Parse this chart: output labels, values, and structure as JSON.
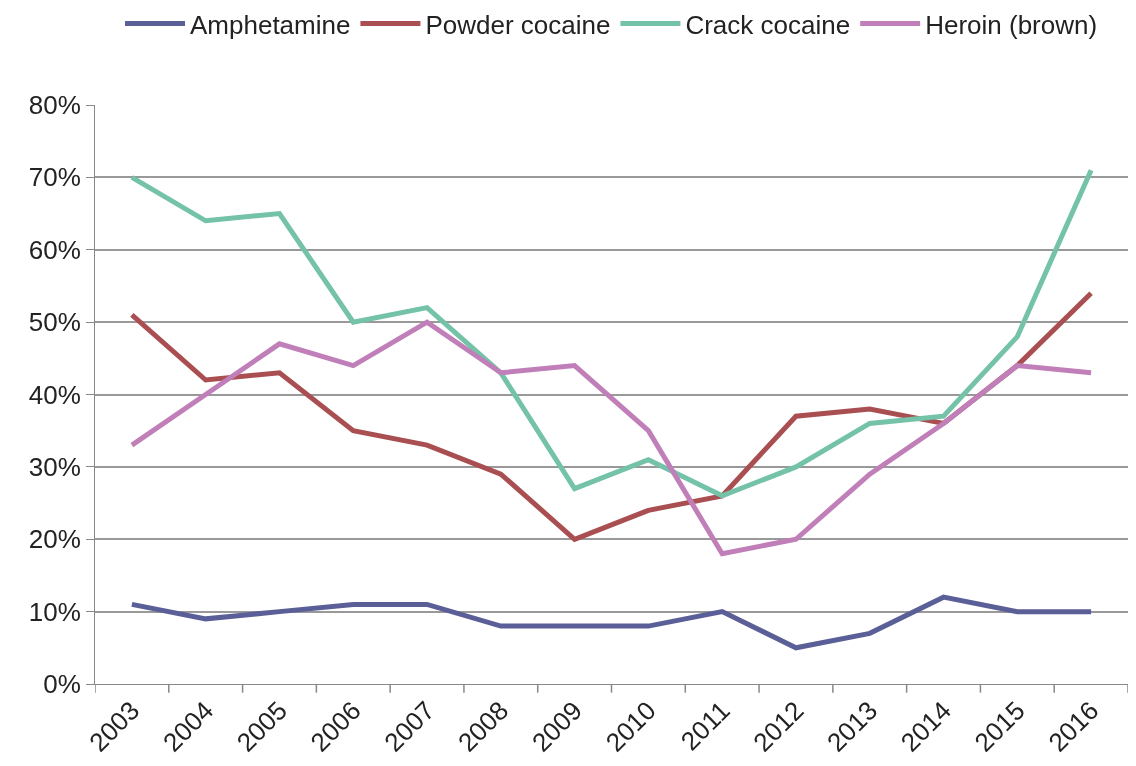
{
  "chart_data": {
    "type": "line",
    "categories": [
      "2003",
      "2004",
      "2005",
      "2006",
      "2007",
      "2008",
      "2009",
      "2010",
      "2011",
      "2012",
      "2013",
      "2014",
      "2015",
      "2016"
    ],
    "series": [
      {
        "name": "Amphetamine",
        "color": "#5b5f97",
        "values": [
          11,
          9,
          10,
          11,
          11,
          8,
          8,
          8,
          10,
          5,
          7,
          12,
          10,
          10
        ]
      },
      {
        "name": "Powder cocaine",
        "color": "#a94f52",
        "values": [
          51,
          42,
          43,
          35,
          33,
          29,
          20,
          24,
          26,
          37,
          38,
          36,
          44,
          54
        ]
      },
      {
        "name": "Crack cocaine",
        "color": "#74c2a8",
        "values": [
          70,
          64,
          65,
          50,
          52,
          43,
          27,
          31,
          26,
          30,
          36,
          37,
          48,
          71
        ]
      },
      {
        "name": "Heroin (brown)",
        "color": "#c07fb8",
        "values": [
          33,
          40,
          47,
          44,
          50,
          43,
          44,
          35,
          18,
          20,
          29,
          36,
          44,
          43
        ]
      }
    ],
    "ylim": [
      0,
      80
    ],
    "yticks": [
      {
        "value": 0,
        "label": "0%"
      },
      {
        "value": 10,
        "label": "10%"
      },
      {
        "value": 20,
        "label": "20%"
      },
      {
        "value": 30,
        "label": "30%"
      },
      {
        "value": 40,
        "label": "40%"
      },
      {
        "value": 50,
        "label": "50%"
      },
      {
        "value": 60,
        "label": "60%"
      },
      {
        "value": 70,
        "label": "70%"
      },
      {
        "value": 80,
        "label": "80%"
      }
    ],
    "grid": "y",
    "legend": "top",
    "marker": "none",
    "line_style": "solid"
  }
}
